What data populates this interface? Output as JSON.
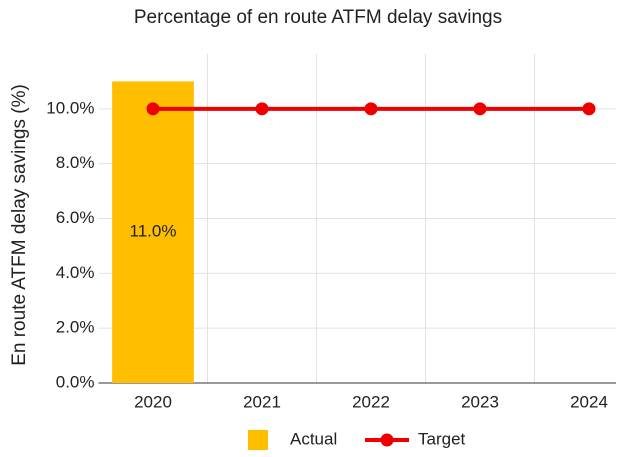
{
  "chart_data": {
    "type": "bar",
    "title": "Percentage of en route ATFM delay savings",
    "y_label": "En route ATFM delay savings (%)",
    "categories": [
      "2020",
      "2021",
      "2022",
      "2023",
      "2024"
    ],
    "series": [
      {
        "name": "Actual",
        "type": "bar",
        "color": "#ffbf00",
        "values": [
          11.0,
          null,
          null,
          null,
          null
        ],
        "value_labels": [
          "11.0%",
          null,
          null,
          null,
          null
        ]
      },
      {
        "name": "Target",
        "type": "line",
        "color": "#ee0000",
        "values": [
          10,
          10,
          10,
          10,
          10
        ]
      }
    ],
    "ylim": [
      0,
      12
    ],
    "yticks": [
      {
        "value": 0,
        "label": "0.0%"
      },
      {
        "value": 2,
        "label": "2.0%"
      },
      {
        "value": 4,
        "label": "4.0%"
      },
      {
        "value": 6,
        "label": "6.0%"
      },
      {
        "value": 8,
        "label": "8.0%"
      },
      {
        "value": 10,
        "label": "10.0%"
      }
    ],
    "grid": true,
    "legend": "bottom"
  }
}
